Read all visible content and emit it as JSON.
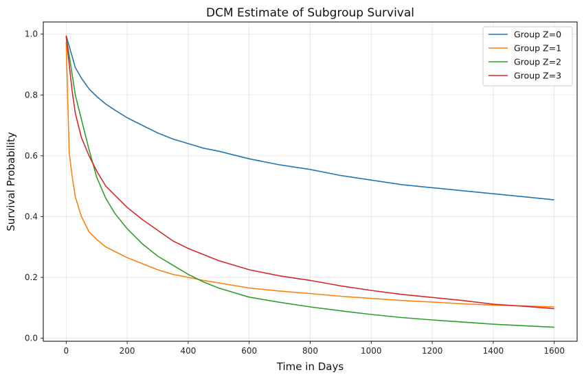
{
  "chart_data": {
    "type": "line",
    "title": "DCM Estimate of Subgroup Survival",
    "xlabel": "Time in Days",
    "ylabel": "Survival Probability",
    "xlim": [
      -75,
      1675
    ],
    "ylim": [
      -0.01,
      1.04
    ],
    "xticks": [
      0,
      200,
      400,
      600,
      800,
      1000,
      1200,
      1400,
      1600
    ],
    "yticks": [
      0.0,
      0.2,
      0.4,
      0.6,
      0.8,
      1.0
    ],
    "grid": true,
    "legend_position": "top-right",
    "x": [
      0,
      10,
      20,
      30,
      50,
      75,
      100,
      130,
      160,
      200,
      250,
      300,
      350,
      400,
      450,
      500,
      600,
      700,
      800,
      900,
      1000,
      1100,
      1200,
      1300,
      1400,
      1500,
      1600
    ],
    "series": [
      {
        "name": "Group Z=0",
        "color": "#1f77b4",
        "values": [
          0.995,
          0.96,
          0.925,
          0.89,
          0.855,
          0.82,
          0.795,
          0.77,
          0.75,
          0.725,
          0.7,
          0.675,
          0.655,
          0.64,
          0.625,
          0.615,
          0.59,
          0.57,
          0.555,
          0.535,
          0.52,
          0.505,
          0.495,
          0.485,
          0.475,
          0.465,
          0.455
        ]
      },
      {
        "name": "Group Z=1",
        "color": "#ff7f0e",
        "values": [
          0.975,
          0.61,
          0.53,
          0.465,
          0.4,
          0.35,
          0.325,
          0.3,
          0.285,
          0.265,
          0.245,
          0.225,
          0.21,
          0.2,
          0.19,
          0.182,
          0.165,
          0.155,
          0.147,
          0.138,
          0.131,
          0.124,
          0.119,
          0.113,
          0.109,
          0.106,
          0.103
        ]
      },
      {
        "name": "Group Z=2",
        "color": "#2ca02c",
        "values": [
          0.99,
          0.93,
          0.865,
          0.8,
          0.72,
          0.62,
          0.53,
          0.46,
          0.41,
          0.36,
          0.31,
          0.27,
          0.24,
          0.21,
          0.185,
          0.165,
          0.135,
          0.118,
          0.103,
          0.09,
          0.078,
          0.068,
          0.06,
          0.053,
          0.046,
          0.041,
          0.036
        ]
      },
      {
        "name": "Group Z=3",
        "color": "#d62728",
        "values": [
          0.995,
          0.9,
          0.81,
          0.74,
          0.66,
          0.6,
          0.55,
          0.5,
          0.47,
          0.43,
          0.39,
          0.355,
          0.32,
          0.295,
          0.275,
          0.255,
          0.225,
          0.205,
          0.19,
          0.172,
          0.157,
          0.144,
          0.134,
          0.124,
          0.112,
          0.105,
          0.097
        ]
      }
    ]
  }
}
